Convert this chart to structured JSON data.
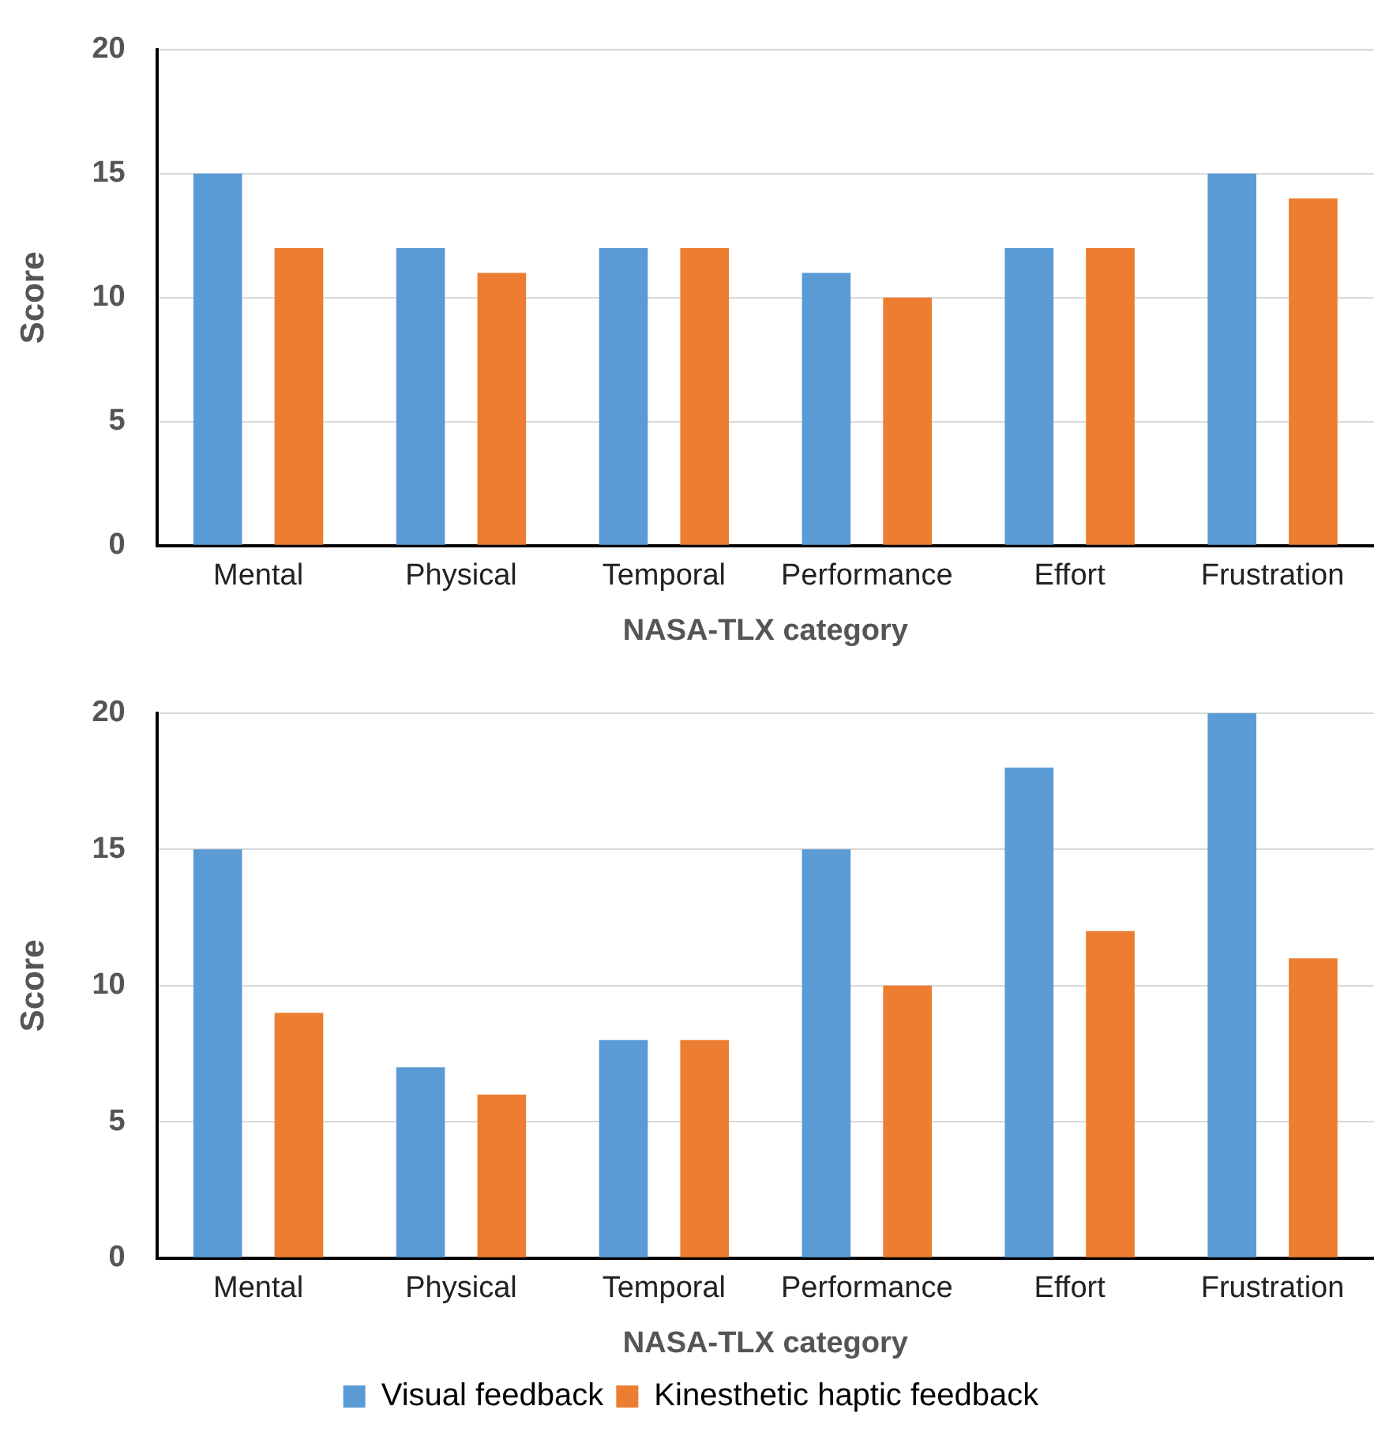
{
  "chart_data": [
    {
      "type": "bar",
      "xlabel": "NASA-TLX category",
      "ylabel": "Score",
      "categories": [
        "Mental",
        "Physical",
        "Temporal",
        "Performance",
        "Effort",
        "Frustration"
      ],
      "series": [
        {
          "color": "#5b9bd5",
          "values": [
            15,
            12,
            12,
            11,
            12,
            15
          ]
        },
        {
          "color": "#ed7d31",
          "values": [
            12,
            11,
            12,
            10,
            12,
            14
          ]
        }
      ],
      "ylim": [
        0,
        20
      ],
      "yticks": [
        0,
        5,
        10,
        15,
        20
      ],
      "grid": "y",
      "legend": false
    },
    {
      "type": "bar",
      "xlabel": "NASA-TLX category",
      "ylabel": "Score",
      "categories": [
        "Mental",
        "Physical",
        "Temporal",
        "Performance",
        "Effort",
        "Frustration"
      ],
      "series": [
        {
          "name": "Visual feedback",
          "color": "#5b9bd5",
          "values": [
            15,
            7,
            8,
            15,
            18,
            20
          ]
        },
        {
          "name": "Kinesthetic haptic feedback",
          "color": "#ed7d31",
          "values": [
            9,
            6,
            8,
            10,
            12,
            11
          ]
        }
      ],
      "ylim": [
        0,
        20
      ],
      "yticks": [
        0,
        5,
        10,
        15,
        20
      ],
      "grid": "y",
      "legend": "bottom"
    }
  ]
}
